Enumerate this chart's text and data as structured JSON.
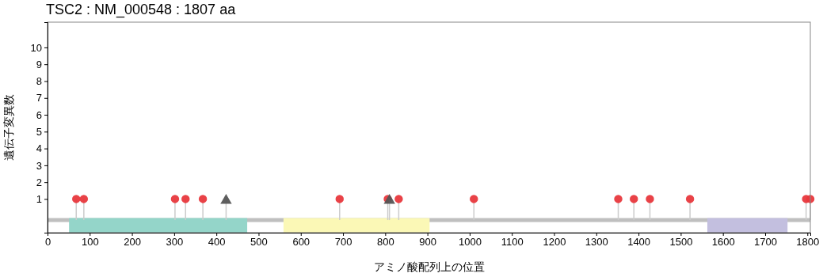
{
  "chart_data": {
    "type": "lollipop",
    "title": "TSC2 : NM_000548 : 1807 aa",
    "xlabel": "アミノ酸配列上の位置",
    "ylabel": "遺伝子変異数",
    "xlim": [
      0,
      1807
    ],
    "xticks": [
      0,
      100,
      200,
      300,
      400,
      500,
      600,
      700,
      800,
      900,
      1000,
      1100,
      1200,
      1300,
      1400,
      1500,
      1600,
      1700,
      1800
    ],
    "ylim": [
      -1,
      11.5
    ],
    "yticks": [
      1,
      2,
      3,
      4,
      5,
      6,
      7,
      8,
      9,
      10
    ],
    "series": [
      {
        "color": "#e8383d",
        "marker": "circle",
        "x": [
          68,
          86,
          302,
          327,
          368,
          692,
          806,
          832,
          1010,
          1352,
          1389,
          1427,
          1522,
          1797,
          1807
        ],
        "values": [
          1,
          1,
          1,
          1,
          1,
          1,
          1,
          1,
          1,
          1,
          1,
          1,
          1,
          1,
          1
        ]
      },
      {
        "color": "#555555",
        "marker": "triangle",
        "x": [
          423,
          810
        ],
        "values": [
          1,
          1
        ]
      }
    ],
    "bands": [
      {
        "axis": "x",
        "from": 51,
        "to": 473,
        "color": "#94d5c9"
      },
      {
        "axis": "x",
        "from": 559,
        "to": 905,
        "color": "#fbf8b6"
      },
      {
        "axis": "x",
        "from": 1563,
        "to": 1753,
        "color": "#c3bfdf"
      }
    ],
    "grid": false
  }
}
